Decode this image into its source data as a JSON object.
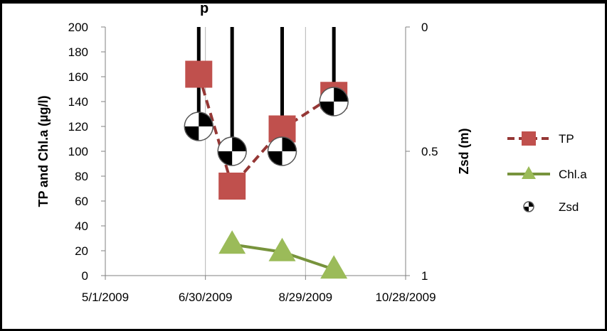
{
  "chart_data": {
    "type": "line",
    "title": "",
    "title_fragment": "p",
    "ylabel": "TP and Chl.a (µg/l)",
    "y2label": "Zsd (m)",
    "ylim": [
      0,
      200
    ],
    "yticks": [
      0,
      20,
      40,
      60,
      80,
      100,
      120,
      140,
      160,
      180,
      200
    ],
    "y2lim": [
      0,
      1
    ],
    "y2ticks": [
      {
        "value": 0,
        "label": "0"
      },
      {
        "value": 0.5,
        "label": "0.5"
      },
      {
        "value": 1,
        "label": "1"
      }
    ],
    "y2_inverted": true,
    "xlim": [
      "5/1/2009",
      "10/28/2009"
    ],
    "xticks": [
      "5/1/2009",
      "6/30/2009",
      "8/29/2009",
      "10/28/2009"
    ],
    "grid": "vertical",
    "legend_position": "right",
    "series": [
      {
        "name": "TP",
        "color": "#c0504d",
        "line_color": "#953735",
        "marker": "square",
        "line_style": "dashed",
        "axis": "left",
        "x": [
          "6/26/2009",
          "7/16/2009",
          "8/15/2009",
          "9/15/2009"
        ],
        "y": [
          162,
          72,
          118,
          145
        ]
      },
      {
        "name": "Chl.a",
        "color": "#9bbb59",
        "line_color": "#77933c",
        "marker": "triangle",
        "line_style": "solid",
        "axis": "left",
        "x": [
          "7/16/2009",
          "8/15/2009",
          "9/15/2009"
        ],
        "y": [
          25,
          19,
          5
        ]
      },
      {
        "name": "Zsd",
        "color": "#000000",
        "marker": "checker-circle",
        "line_style": "none",
        "drop_lines": true,
        "axis": "right",
        "x": [
          "6/26/2009",
          "7/16/2009",
          "8/15/2009",
          "9/15/2009"
        ],
        "y": [
          0.4,
          0.5,
          0.5,
          0.3
        ]
      }
    ]
  }
}
